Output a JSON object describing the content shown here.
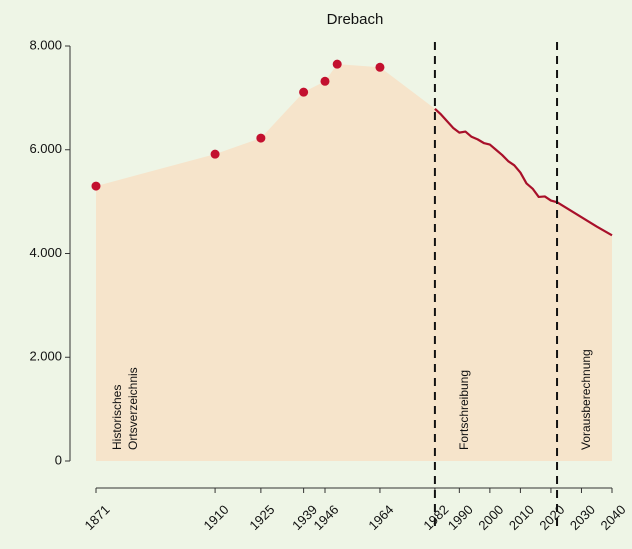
{
  "chart_data": {
    "type": "line",
    "title": "Drebach",
    "xlim": [
      1871,
      2040
    ],
    "ylim": [
      0,
      8000
    ],
    "xticks": [
      1871,
      1910,
      1925,
      1939,
      1946,
      1964,
      1982,
      1990,
      2000,
      2010,
      2020,
      2030,
      2040
    ],
    "yticks": [
      {
        "value": 0,
        "label": "0"
      },
      {
        "value": 2000,
        "label": "2.000"
      },
      {
        "value": 4000,
        "label": "4.000"
      },
      {
        "value": 6000,
        "label": "6.000"
      },
      {
        "value": 8000,
        "label": "8.000"
      }
    ],
    "area_color": "#f6e4cb",
    "series": [
      {
        "style": "points",
        "color": "#c3102f",
        "x": [
          1871,
          1910,
          1925,
          1939,
          1946,
          1950,
          1964
        ],
        "values": [
          5300,
          5915,
          6225,
          7110,
          7320,
          7650,
          7590
        ]
      },
      {
        "style": "line",
        "color": "#a8102a",
        "x": [
          1982,
          1984,
          1986,
          1988,
          1990,
          1992,
          1994,
          1996,
          1998,
          2000,
          2002,
          2004,
          2006,
          2008,
          2010,
          2012,
          2014,
          2016,
          2018,
          2020,
          2022,
          2025,
          2030,
          2035,
          2040
        ],
        "values": [
          6790,
          6680,
          6550,
          6420,
          6330,
          6350,
          6250,
          6200,
          6130,
          6100,
          6000,
          5900,
          5780,
          5700,
          5560,
          5350,
          5250,
          5090,
          5100,
          5020,
          4990,
          4880,
          4700,
          4520,
          4350
        ]
      }
    ],
    "vlines": [
      1982,
      2022
    ],
    "annotations": [
      [
        "Historisches",
        "Ortsverzeichnis"
      ],
      [
        "Fortschreibung"
      ],
      [
        "Vorausberechnung"
      ]
    ]
  }
}
